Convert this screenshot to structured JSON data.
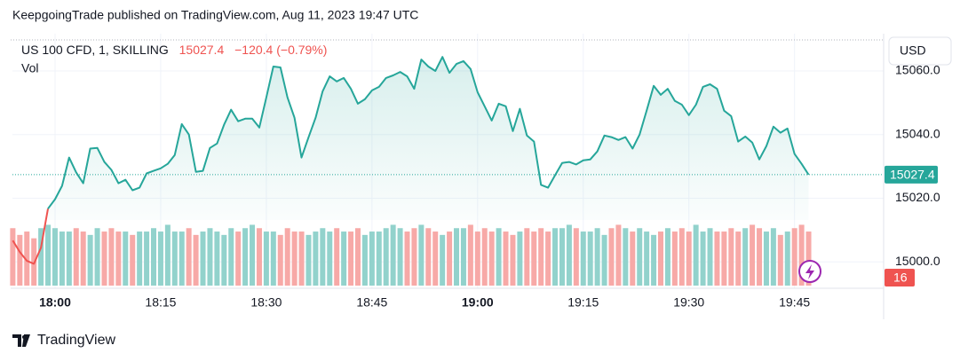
{
  "header": "KeepgoingTrade published on TradingView.com, Aug 11, 2023 19:47 UTC",
  "footer": "TradingView",
  "chart_data": {
    "type": "line",
    "title": "US 100 CFD, 1, SKILLING",
    "change": "−120.4 (−0.79%)",
    "volume_label": "Vol",
    "currency": "USD",
    "x": [
      -6,
      -5,
      -4,
      -3,
      -2,
      -1,
      0,
      1,
      2,
      3,
      4,
      5,
      6,
      7,
      8,
      9,
      10,
      11,
      12,
      13,
      14,
      15,
      16,
      17,
      18,
      19,
      20,
      21,
      22,
      23,
      24,
      25,
      26,
      27,
      28,
      29,
      30,
      31,
      32,
      33,
      34,
      35,
      36,
      37,
      38,
      39,
      40,
      41,
      42,
      43,
      44,
      45,
      46,
      47,
      48,
      49,
      50,
      51,
      52,
      53,
      54,
      55,
      56,
      57,
      58,
      59,
      60,
      61,
      62,
      63,
      64,
      65,
      66,
      67,
      68,
      69,
      70,
      71,
      72,
      73,
      74,
      75,
      76,
      77,
      78,
      79,
      80,
      81,
      82,
      83,
      84,
      85,
      86,
      87,
      88,
      89,
      90,
      91,
      92,
      93,
      94,
      95,
      96,
      97,
      98,
      99,
      100,
      101,
      102,
      103,
      104,
      105,
      106,
      107
    ],
    "series": [
      {
        "color": "#ef5350",
        "values": [
          15006.7,
          15003.1,
          15000.3,
          14999.4,
          15004.4,
          15016.7,
          null,
          null,
          null,
          null,
          null,
          null,
          null,
          null,
          null,
          null,
          null,
          null,
          null,
          null,
          null,
          null,
          null,
          null,
          null,
          null,
          null,
          null,
          null,
          null,
          null,
          null,
          null,
          null,
          null,
          null,
          null,
          null,
          null,
          null,
          null,
          null,
          null,
          null,
          null,
          null,
          null,
          null,
          null,
          null,
          null,
          null,
          null,
          null,
          null,
          null,
          null,
          null,
          null,
          null,
          null,
          null,
          null,
          null,
          null,
          null,
          null,
          null,
          null,
          null,
          null,
          null,
          null,
          null,
          null,
          null,
          null,
          null,
          null,
          null,
          null,
          null,
          null,
          null,
          null,
          null,
          null,
          null,
          null,
          null,
          null,
          null,
          null,
          null,
          null,
          null,
          null,
          null,
          null,
          null,
          null,
          null,
          null,
          null,
          null,
          null,
          null,
          null,
          null,
          null,
          null,
          null,
          null,
          null
        ]
      },
      {
        "color": "#26a69a",
        "values": [
          null,
          null,
          null,
          null,
          null,
          15016.7,
          15019.7,
          15023.9,
          15032.8,
          15028.1,
          15024.7,
          15035.6,
          15035.8,
          15031.4,
          15028.9,
          15024.7,
          15025.8,
          15022.5,
          15023.3,
          15027.8,
          15028.6,
          15029.4,
          15030.8,
          15033.6,
          15043.3,
          15040.0,
          15028.3,
          15028.6,
          15035.8,
          15037.2,
          15043.1,
          15047.8,
          15044.2,
          15045.0,
          15045.0,
          15042.2,
          15051.7,
          15061.4,
          15061.1,
          15051.7,
          15045.3,
          15032.8,
          15039.2,
          15045.3,
          15053.6,
          15058.3,
          15056.7,
          15057.8,
          15054.4,
          15049.7,
          15051.1,
          15053.9,
          15055.0,
          15057.8,
          15058.6,
          15059.7,
          15058.3,
          15054.4,
          15063.6,
          15061.4,
          15060.0,
          15064.4,
          15059.4,
          15062.2,
          15063.1,
          15060.6,
          15053.3,
          15048.9,
          15044.4,
          15049.7,
          15048.9,
          15041.1,
          15048.1,
          15039.7,
          15037.8,
          15024.2,
          15023.3,
          15027.2,
          15031.1,
          15031.4,
          15030.6,
          15031.9,
          15032.2,
          15034.7,
          15039.7,
          15039.2,
          15038.3,
          15039.2,
          15035.6,
          15040.0,
          15047.5,
          15055.3,
          15052.5,
          15054.4,
          15050.6,
          15049.4,
          15046.1,
          15049.4,
          15055.0,
          15055.8,
          15054.4,
          15047.5,
          15045.8,
          15037.8,
          15039.4,
          15037.5,
          15032.2,
          15036.4,
          15042.5,
          15040.6,
          15041.9,
          15033.9,
          15030.8,
          15027.4
        ]
      }
    ],
    "volume": {
      "up_color": "#92d2cc",
      "down_color": "#f7a9a7",
      "ylim": [
        0,
        21
      ],
      "values": [
        17,
        15,
        16,
        14,
        17,
        18,
        17,
        16,
        16,
        17,
        16,
        15,
        17,
        16,
        17,
        16,
        16,
        15,
        16,
        16,
        17,
        16,
        18,
        16,
        16,
        17,
        15,
        16,
        17,
        16,
        15,
        17,
        16,
        17,
        18,
        17,
        16,
        16,
        15,
        17,
        16,
        16,
        15,
        16,
        17,
        16,
        17,
        16,
        16,
        17,
        15,
        16,
        16,
        17,
        18,
        17,
        16,
        17,
        18,
        17,
        16,
        15,
        16,
        17,
        17,
        18,
        16,
        17,
        16,
        17,
        16,
        15,
        16,
        17,
        16,
        17,
        16,
        17,
        17,
        18,
        17,
        16,
        16,
        17,
        15,
        17,
        18,
        17,
        16,
        17,
        16,
        15,
        16,
        17,
        16,
        17,
        16,
        18,
        16,
        17,
        16,
        16,
        17,
        16,
        17,
        18,
        17,
        16,
        17,
        15,
        16,
        17,
        18,
        16
      ]
    },
    "xlim": [
      -6.05,
      117.65
    ],
    "xticks": [
      {
        "value": 0,
        "label": "18:00"
      },
      {
        "value": 15,
        "label": "18:15"
      },
      {
        "value": 30,
        "label": "18:30"
      },
      {
        "value": 45,
        "label": "18:45"
      },
      {
        "value": 60,
        "label": "19:00"
      },
      {
        "value": 75,
        "label": "19:15"
      },
      {
        "value": 90,
        "label": "19:30"
      },
      {
        "value": 105,
        "label": "19:45"
      }
    ],
    "ylim": [
      14991.7,
      15071.7
    ],
    "yticks": [
      {
        "value": 15000,
        "label": "15000.0"
      },
      {
        "value": 15020,
        "label": "15020.0"
      },
      {
        "value": 15040,
        "label": "15040.0"
      },
      {
        "value": 15060,
        "label": "15060.0"
      }
    ],
    "grid": true
  }
}
